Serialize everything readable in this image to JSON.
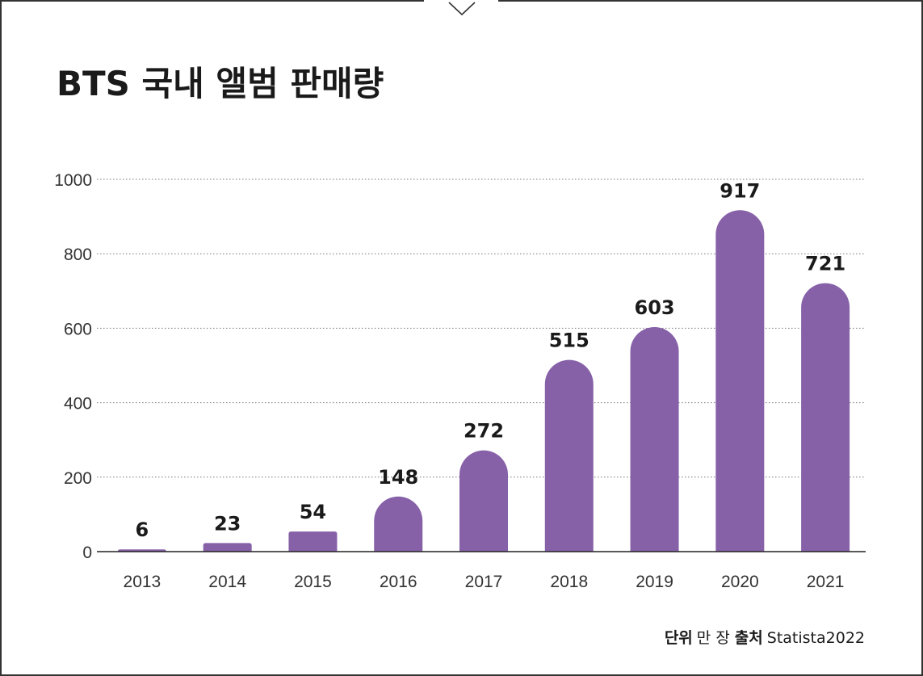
{
  "title": "BTS 국내 앨범 판매량",
  "footer": {
    "unit_label": "단위",
    "unit_value": "만 장",
    "source_label": "출처",
    "source_value": "Statista2022"
  },
  "colors": {
    "bar": "#8761a8",
    "frame": "#333333",
    "text": "#1a1a1a"
  },
  "icons": {
    "top_notch": "chevron-down-icon"
  },
  "chart_data": {
    "type": "bar",
    "title": "BTS 국내 앨범 판매량",
    "categories": [
      "2013",
      "2014",
      "2015",
      "2016",
      "2017",
      "2018",
      "2019",
      "2020",
      "2021"
    ],
    "values": [
      6,
      23,
      54,
      148,
      272,
      515,
      603,
      917,
      721
    ],
    "value_labels": [
      "6",
      "23",
      "54",
      "148",
      "272",
      "515",
      "603",
      "917",
      "721"
    ],
    "y_ticks": [
      "0",
      "200",
      "400",
      "600",
      "800",
      "1000"
    ],
    "ylim": [
      0,
      1000
    ],
    "xlabel": "",
    "ylabel": "",
    "grid": true,
    "legend": "none"
  }
}
